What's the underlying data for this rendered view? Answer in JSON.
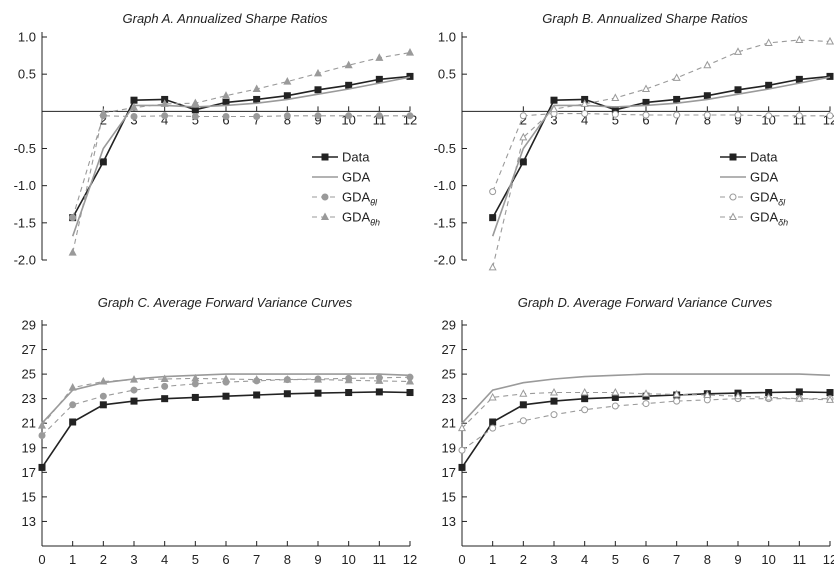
{
  "chart_data": [
    {
      "type": "line",
      "title": "Graph A. Annualized Sharpe Ratios",
      "x": [
        1,
        2,
        3,
        4,
        5,
        6,
        7,
        8,
        9,
        10,
        11,
        12
      ],
      "xticks": [
        "2",
        "3",
        "4",
        "5",
        "6",
        "7",
        "8",
        "9",
        "10",
        "11",
        "12"
      ],
      "ylim": [
        -2.0,
        1.0
      ],
      "yticks": [
        "1.0",
        "0.5",
        "-0.5",
        "-1.0",
        "-1.5",
        "-2.0"
      ],
      "legend": "right",
      "series": [
        {
          "name": "Data",
          "values": [
            -1.43,
            -0.68,
            0.15,
            0.16,
            0.02,
            0.12,
            0.16,
            0.21,
            0.29,
            0.35,
            0.43,
            0.47
          ]
        },
        {
          "name": "GDA",
          "values": [
            -1.68,
            -0.5,
            0.08,
            0.08,
            0.06,
            0.08,
            0.11,
            0.16,
            0.23,
            0.3,
            0.38,
            0.46
          ]
        },
        {
          "name": "GDA",
          "sub": "θl",
          "values": [
            -1.43,
            -0.06,
            -0.07,
            -0.06,
            -0.07,
            -0.07,
            -0.07,
            -0.06,
            -0.06,
            -0.06,
            -0.06,
            -0.06
          ]
        },
        {
          "name": "GDA",
          "sub": "θh",
          "values": [
            -1.9,
            -0.02,
            0.05,
            0.1,
            0.11,
            0.21,
            0.3,
            0.4,
            0.51,
            0.62,
            0.72,
            0.79
          ]
        }
      ]
    },
    {
      "type": "line",
      "title": "Graph B. Annualized Sharpe Ratios",
      "x": [
        1,
        2,
        3,
        4,
        5,
        6,
        7,
        8,
        9,
        10,
        11,
        12
      ],
      "xticks": [
        "2",
        "3",
        "4",
        "5",
        "6",
        "7",
        "8",
        "9",
        "10",
        "11",
        "12"
      ],
      "ylim": [
        -2.0,
        1.0
      ],
      "yticks": [
        "1.0",
        "0.5",
        "-0.5",
        "-1.0",
        "-1.5",
        "-2.0"
      ],
      "legend": "right",
      "series": [
        {
          "name": "Data",
          "values": [
            -1.43,
            -0.68,
            0.15,
            0.16,
            0.02,
            0.12,
            0.16,
            0.21,
            0.29,
            0.35,
            0.43,
            0.47
          ]
        },
        {
          "name": "GDA",
          "values": [
            -1.68,
            -0.5,
            0.08,
            0.08,
            0.06,
            0.08,
            0.11,
            0.16,
            0.23,
            0.3,
            0.38,
            0.46
          ]
        },
        {
          "name": "GDA",
          "sub": "δl",
          "values": [
            -1.08,
            -0.06,
            -0.03,
            -0.03,
            -0.04,
            -0.05,
            -0.05,
            -0.05,
            -0.05,
            -0.06,
            -0.06,
            -0.06
          ]
        },
        {
          "name": "GDA",
          "sub": "δh",
          "values": [
            -2.1,
            -0.35,
            0.03,
            0.1,
            0.18,
            0.3,
            0.45,
            0.62,
            0.8,
            0.92,
            0.96,
            0.94
          ]
        }
      ]
    },
    {
      "type": "line",
      "title": "Graph C. Average Forward Variance Curves",
      "x": [
        0,
        1,
        2,
        3,
        4,
        5,
        6,
        7,
        8,
        9,
        10,
        11,
        12
      ],
      "xticks": [
        "0",
        "1",
        "2",
        "3",
        "4",
        "5",
        "6",
        "7",
        "8",
        "9",
        "10",
        "11",
        "12"
      ],
      "ylim": [
        11,
        29
      ],
      "yticks": [
        "29",
        "27",
        "25",
        "23",
        "21",
        "19",
        "17",
        "15",
        "13"
      ],
      "series": [
        {
          "name": "Data",
          "values": [
            17.4,
            21.1,
            22.5,
            22.8,
            23.0,
            23.1,
            23.2,
            23.3,
            23.4,
            23.45,
            23.5,
            23.55,
            23.5
          ]
        },
        {
          "name": "GDA",
          "values": [
            21.0,
            23.7,
            24.3,
            24.6,
            24.8,
            24.9,
            25.0,
            25.0,
            25.0,
            25.0,
            25.0,
            25.0,
            24.9
          ]
        },
        {
          "name": "GDA",
          "sub": "θl",
          "values": [
            20.0,
            22.5,
            23.2,
            23.7,
            24.0,
            24.2,
            24.35,
            24.45,
            24.55,
            24.6,
            24.65,
            24.7,
            24.75
          ]
        },
        {
          "name": "GDA",
          "sub": "θh",
          "values": [
            20.8,
            23.9,
            24.4,
            24.55,
            24.6,
            24.65,
            24.6,
            24.55,
            24.55,
            24.55,
            24.5,
            24.45,
            24.4
          ]
        }
      ]
    },
    {
      "type": "line",
      "title": "Graph D. Average Forward Variance Curves",
      "x": [
        0,
        1,
        2,
        3,
        4,
        5,
        6,
        7,
        8,
        9,
        10,
        11,
        12
      ],
      "xticks": [
        "0",
        "1",
        "2",
        "3",
        "4",
        "5",
        "6",
        "7",
        "8",
        "9",
        "10",
        "11",
        "12"
      ],
      "ylim": [
        11,
        29
      ],
      "yticks": [
        "29",
        "27",
        "25",
        "23",
        "21",
        "19",
        "17",
        "15",
        "13"
      ],
      "series": [
        {
          "name": "Data",
          "values": [
            17.4,
            21.1,
            22.5,
            22.8,
            23.0,
            23.1,
            23.2,
            23.3,
            23.4,
            23.45,
            23.5,
            23.55,
            23.5
          ]
        },
        {
          "name": "GDA",
          "values": [
            21.0,
            23.7,
            24.3,
            24.6,
            24.8,
            24.9,
            25.0,
            25.0,
            25.0,
            25.0,
            25.0,
            25.0,
            24.9
          ]
        },
        {
          "name": "GDA",
          "sub": "δl",
          "values": [
            18.8,
            20.6,
            21.2,
            21.7,
            22.1,
            22.4,
            22.6,
            22.8,
            22.9,
            23.0,
            23.0,
            23.0,
            23.0
          ]
        },
        {
          "name": "GDA",
          "sub": "δh",
          "values": [
            20.6,
            23.1,
            23.4,
            23.5,
            23.5,
            23.5,
            23.4,
            23.35,
            23.3,
            23.2,
            23.1,
            23.0,
            22.9
          ]
        }
      ]
    }
  ]
}
